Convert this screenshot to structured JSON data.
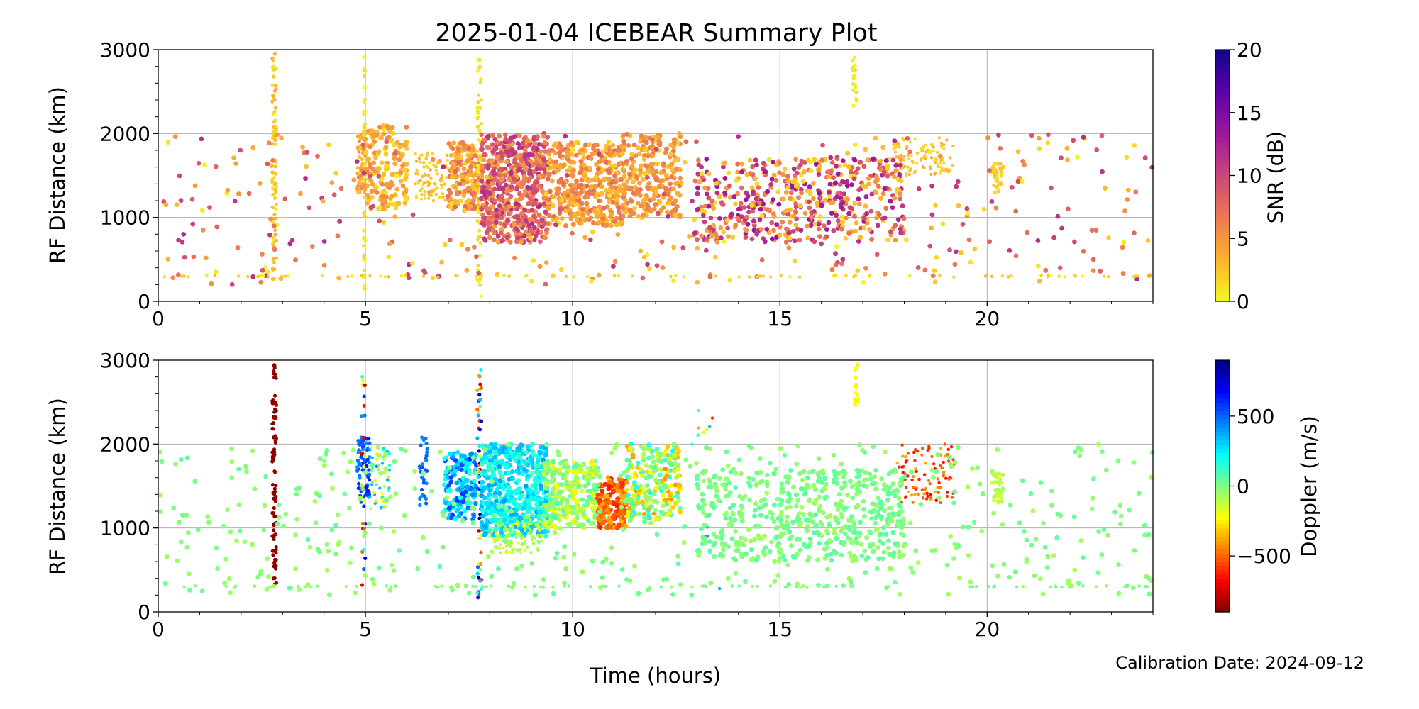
{
  "figure": {
    "title": "2025-01-04 ICEBEAR Summary Plot",
    "xlabel": "Time (hours)",
    "footer": "Calibration Date: 2024-09-12"
  },
  "chart_data": [
    {
      "type": "scatter",
      "name": "snr",
      "xlabel": "",
      "ylabel": "RF Distance (km)",
      "xlim": [
        0,
        24
      ],
      "ylim": [
        0,
        3000
      ],
      "xticks": [
        0,
        5,
        10,
        15,
        20
      ],
      "xtick_labels": [
        "0",
        "5",
        "10",
        "15",
        "20"
      ],
      "yticks": [
        0,
        1000,
        2000,
        3000
      ],
      "ytick_labels": [
        "0",
        "1000",
        "2000",
        "3000"
      ],
      "grid": true,
      "colorbar": {
        "label": "SNR (dB)",
        "range": [
          0,
          20
        ],
        "ticks": [
          0,
          5,
          10,
          15,
          20
        ],
        "tick_labels": [
          "0",
          "5",
          "10",
          "15",
          "20"
        ],
        "colormap": "plasma_r",
        "stops": [
          "#f0f921",
          "#fdb42f",
          "#ed7953",
          "#cc4778",
          "#9c179e",
          "#5c01a6",
          "#0d0887"
        ]
      },
      "clusters": [
        {
          "t": [
            2.75,
            2.85
          ],
          "r": [
            300,
            2950
          ],
          "n": 80,
          "v": [
            1,
            4
          ]
        },
        {
          "t": [
            4.8,
            5.0
          ],
          "r": [
            1300,
            2000
          ],
          "n": 60,
          "v": [
            2,
            6
          ]
        },
        {
          "t": [
            4.95,
            5.0
          ],
          "r": [
            50,
            2950
          ],
          "n": 40,
          "v": [
            0,
            2
          ]
        },
        {
          "t": [
            5.0,
            6.0
          ],
          "r": [
            1100,
            2100
          ],
          "n": 160,
          "v": [
            1,
            6
          ]
        },
        {
          "t": [
            6.2,
            7.0
          ],
          "r": [
            1200,
            1800
          ],
          "n": 80,
          "v": [
            1,
            4
          ]
        },
        {
          "t": [
            7.0,
            7.8
          ],
          "r": [
            1100,
            1900
          ],
          "n": 180,
          "v": [
            2,
            8
          ]
        },
        {
          "t": [
            7.7,
            7.8
          ],
          "r": [
            0,
            2950
          ],
          "n": 60,
          "v": [
            0,
            2
          ]
        },
        {
          "t": [
            7.8,
            9.4
          ],
          "r": [
            700,
            2000
          ],
          "n": 600,
          "v": [
            4,
            12
          ]
        },
        {
          "t": [
            9.4,
            11.2
          ],
          "r": [
            900,
            1900
          ],
          "n": 400,
          "v": [
            2,
            8
          ]
        },
        {
          "t": [
            11.2,
            12.6
          ],
          "r": [
            1000,
            2000
          ],
          "n": 260,
          "v": [
            2,
            7
          ]
        },
        {
          "t": [
            16.75,
            16.85
          ],
          "r": [
            2300,
            2950
          ],
          "n": 20,
          "v": [
            0,
            2
          ]
        },
        {
          "t": [
            17.7,
            19.2
          ],
          "r": [
            1500,
            1950
          ],
          "n": 100,
          "v": [
            1,
            4
          ]
        },
        {
          "t": [
            20.1,
            20.4
          ],
          "r": [
            1300,
            1650
          ],
          "n": 40,
          "v": [
            1,
            3
          ]
        },
        {
          "t": [
            0,
            24
          ],
          "r": [
            200,
            2000
          ],
          "n": 420,
          "v": [
            0,
            12
          ]
        },
        {
          "t": [
            13.0,
            18.0
          ],
          "r": [
            700,
            1700
          ],
          "n": 500,
          "v": [
            1,
            14
          ]
        },
        {
          "t": [
            0,
            24
          ],
          "r": [
            290,
            310
          ],
          "n": 90,
          "v": [
            0,
            3
          ]
        }
      ]
    },
    {
      "type": "scatter",
      "name": "doppler",
      "xlabel": "",
      "ylabel": "RF Distance (km)",
      "xlim": [
        0,
        24
      ],
      "ylim": [
        0,
        3000
      ],
      "xticks": [
        0,
        5,
        10,
        15,
        20
      ],
      "xtick_labels": [
        "0",
        "5",
        "10",
        "15",
        "20"
      ],
      "yticks": [
        0,
        1000,
        2000,
        3000
      ],
      "ytick_labels": [
        "0",
        "1000",
        "2000",
        "3000"
      ],
      "grid": true,
      "colorbar": {
        "label": "Doppler (m/s)",
        "range": [
          -900,
          900
        ],
        "ticks": [
          -500,
          0,
          500
        ],
        "tick_labels": [
          "−500",
          "0",
          "500"
        ],
        "colormap": "jet_r",
        "stops": [
          "#7f0000",
          "#ff0000",
          "#ff8000",
          "#ffff00",
          "#80ff80",
          "#00ffff",
          "#0080ff",
          "#0000ff",
          "#00007f"
        ]
      },
      "clusters": [
        {
          "t": [
            2.75,
            2.85
          ],
          "r": [
            300,
            2950
          ],
          "n": 90,
          "v": [
            -900,
            -850
          ]
        },
        {
          "t": [
            4.8,
            5.1
          ],
          "r": [
            1300,
            2100
          ],
          "n": 80,
          "v": [
            400,
            650
          ]
        },
        {
          "t": [
            4.9,
            5.0
          ],
          "r": [
            80,
            2900
          ],
          "n": 30,
          "v": [
            -900,
            900
          ]
        },
        {
          "t": [
            5.1,
            5.6
          ],
          "r": [
            1200,
            2000
          ],
          "n": 60,
          "v": [
            -300,
            450
          ]
        },
        {
          "t": [
            6.3,
            6.5
          ],
          "r": [
            1200,
            2100
          ],
          "n": 30,
          "v": [
            400,
            550
          ]
        },
        {
          "t": [
            6.9,
            7.7
          ],
          "r": [
            1100,
            1900
          ],
          "n": 160,
          "v": [
            100,
            600
          ]
        },
        {
          "t": [
            7.7,
            7.8
          ],
          "r": [
            0,
            2950
          ],
          "n": 60,
          "v": [
            -900,
            900
          ]
        },
        {
          "t": [
            7.8,
            9.4
          ],
          "r": [
            900,
            2000
          ],
          "n": 520,
          "v": [
            100,
            400
          ]
        },
        {
          "t": [
            8.0,
            9.3
          ],
          "r": [
            700,
            1100
          ],
          "n": 120,
          "v": [
            -200,
            0
          ]
        },
        {
          "t": [
            9.3,
            10.6
          ],
          "r": [
            1000,
            1800
          ],
          "n": 260,
          "v": [
            -250,
            100
          ]
        },
        {
          "t": [
            10.6,
            11.3
          ],
          "r": [
            1000,
            1600
          ],
          "n": 160,
          "v": [
            -650,
            -350
          ]
        },
        {
          "t": [
            11.3,
            12.6
          ],
          "r": [
            1100,
            2000
          ],
          "n": 220,
          "v": [
            -450,
            200
          ]
        },
        {
          "t": [
            12.8,
            13.6
          ],
          "r": [
            100,
            2400
          ],
          "n": 16,
          "v": [
            -600,
            700
          ]
        },
        {
          "t": [
            16.8,
            16.9
          ],
          "r": [
            2400,
            2950
          ],
          "n": 20,
          "v": [
            -250,
            -200
          ]
        },
        {
          "t": [
            17.8,
            19.2
          ],
          "r": [
            1300,
            2000
          ],
          "n": 100,
          "v": [
            -700,
            -350
          ]
        },
        {
          "t": [
            20.1,
            20.4
          ],
          "r": [
            1300,
            1650
          ],
          "n": 40,
          "v": [
            -150,
            -50
          ]
        },
        {
          "t": [
            0,
            24
          ],
          "r": [
            200,
            2000
          ],
          "n": 480,
          "v": [
            -80,
            60
          ]
        },
        {
          "t": [
            13.0,
            18.0
          ],
          "r": [
            600,
            1700
          ],
          "n": 500,
          "v": [
            -60,
            80
          ]
        },
        {
          "t": [
            0,
            24
          ],
          "r": [
            290,
            310
          ],
          "n": 90,
          "v": [
            -50,
            40
          ]
        }
      ]
    }
  ]
}
